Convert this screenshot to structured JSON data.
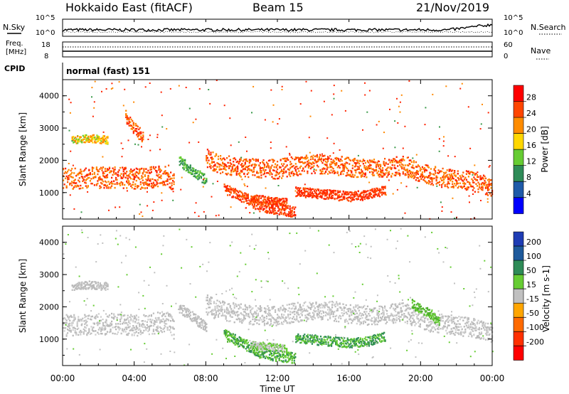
{
  "header": {
    "title": "Hokkaido East (fitACF)",
    "beam": "Beam 15",
    "date": "21/Nov/2019"
  },
  "top_panels": {
    "nsky_label": "N.Sky",
    "nsearch_label": "N.Search",
    "noise_ticks_left": [
      "10^5",
      "10^0"
    ],
    "noise_ticks_right": [
      "10^5",
      "10^0"
    ],
    "freq_label_1": "Freq.",
    "freq_label_2": "[MHz]",
    "freq_ticks": [
      "18",
      "8"
    ],
    "nave_label": "Nave",
    "nave_ticks": [
      "60",
      "0"
    ],
    "cpid_label": "CPID",
    "cpid_text": "normal (fast) 151"
  },
  "chart_data": [
    {
      "type": "heatmap",
      "name": "power",
      "ylabel": "Slant Range [km]",
      "colorbar_label": "Power [dB]",
      "colorbar_ticks": [
        "28",
        "24",
        "20",
        "16",
        "12",
        "8",
        "4"
      ],
      "colorbar_colors": [
        "#ff0000",
        "#ff4500",
        "#ff8c00",
        "#ffd700",
        "#66cc33",
        "#2e8b57",
        "#1e5aa8",
        "#0000ff"
      ],
      "yticks": [
        "4000",
        "3000",
        "2000",
        "1000"
      ],
      "ylim": [
        180,
        4500
      ],
      "xlim": [
        "00:00",
        "24:00"
      ],
      "bands": [
        {
          "center": [
            [
              0,
              1450
            ],
            [
              1.5,
              1480
            ],
            [
              3,
              1500
            ],
            [
              4,
              1450
            ],
            [
              5,
              1500
            ],
            [
              5.8,
              1600
            ],
            [
              6.2,
              1300
            ]
          ],
          "width": 330,
          "color": [
            "#ff2200",
            "#ff5a00",
            "#ff8800"
          ]
        },
        {
          "center": [
            [
              6.5,
              2000
            ],
            [
              7,
              1800
            ],
            [
              8,
              1400
            ]
          ],
          "width": 160,
          "color": [
            "#3a9a4a",
            "#2e8b57",
            "#66cc33"
          ]
        },
        {
          "center": [
            [
              8,
              2100
            ],
            [
              8.5,
              1950
            ],
            [
              9,
              1900
            ],
            [
              10,
              1800
            ],
            [
              11,
              1750
            ],
            [
              12,
              1750
            ],
            [
              13,
              1850
            ],
            [
              14,
              1900
            ],
            [
              15,
              1900
            ],
            [
              16,
              1800
            ],
            [
              17,
              1750
            ],
            [
              18,
              1800
            ],
            [
              19,
              1850
            ],
            [
              20,
              1650
            ],
            [
              21,
              1500
            ],
            [
              22,
              1450
            ],
            [
              23,
              1350
            ],
            [
              24,
              1200
            ]
          ],
          "width": 300,
          "color": [
            "#ff2200",
            "#ff5a00",
            "#ff8800"
          ]
        },
        {
          "center": [
            [
              9,
              1150
            ],
            [
              10,
              900
            ],
            [
              11,
              600
            ],
            [
              12,
              500
            ],
            [
              13,
              420
            ]
          ],
          "width": 170,
          "color": [
            "#ff2200",
            "#ff5a00"
          ]
        },
        {
          "center": [
            [
              13,
              1050
            ],
            [
              14,
              1000
            ],
            [
              15,
              950
            ],
            [
              16,
              900
            ],
            [
              17,
              950
            ],
            [
              18,
              1100
            ]
          ],
          "width": 150,
          "color": [
            "#ff2200",
            "#ff4500"
          ]
        },
        {
          "center": [
            [
              10.5,
              850
            ],
            [
              11.5,
              780
            ],
            [
              12.5,
              720
            ]
          ],
          "width": 120,
          "color": [
            "#ff2200",
            "#ff5a00"
          ]
        },
        {
          "center": [
            [
              3.5,
              3400
            ],
            [
              4,
              3000
            ],
            [
              4.5,
              2700
            ]
          ],
          "width": 200,
          "color": [
            "#ff8800",
            "#ff5a00",
            "#ff2200"
          ]
        },
        {
          "center": [
            [
              0.5,
              2650
            ],
            [
              1.5,
              2700
            ],
            [
              2.5,
              2650
            ]
          ],
          "width": 120,
          "color": [
            "#ff8800",
            "#ffd700",
            "#66cc33"
          ]
        }
      ]
    },
    {
      "type": "heatmap",
      "name": "velocity",
      "ylabel": "Slant Range [km]",
      "colorbar_label": "Velocity [m s-1]",
      "colorbar_ticks": [
        "200",
        "100",
        "50",
        "15",
        "-15",
        "-50",
        "-100",
        "-200"
      ],
      "colorbar_colors": [
        "#1e3cb4",
        "#1e5a9c",
        "#2e8b57",
        "#66cc33",
        "#c0c0c0",
        "#ffa500",
        "#ff6a00",
        "#ff3000",
        "#ff0000"
      ],
      "yticks": [
        "4000",
        "3000",
        "2000",
        "1000"
      ],
      "ylim": [
        180,
        4500
      ],
      "xlim": [
        "00:00",
        "24:00"
      ],
      "bands": [
        {
          "center": [
            [
              0,
              1450
            ],
            [
              1.5,
              1480
            ],
            [
              3,
              1500
            ],
            [
              4,
              1450
            ],
            [
              5,
              1500
            ],
            [
              5.8,
              1600
            ],
            [
              6.2,
              1300
            ]
          ],
          "width": 330,
          "color": [
            "#c0c0c0",
            "#b8b8b8",
            "#cfcfcf"
          ]
        },
        {
          "center": [
            [
              6.5,
              2000
            ],
            [
              7,
              1800
            ],
            [
              8,
              1400
            ]
          ],
          "width": 160,
          "color": [
            "#c0c0c0",
            "#b8b8b8"
          ]
        },
        {
          "center": [
            [
              8,
              2100
            ],
            [
              8.5,
              1950
            ],
            [
              9,
              1900
            ],
            [
              10,
              1800
            ],
            [
              11,
              1750
            ],
            [
              12,
              1750
            ],
            [
              13,
              1850
            ],
            [
              14,
              1900
            ],
            [
              15,
              1900
            ],
            [
              16,
              1800
            ],
            [
              17,
              1750
            ],
            [
              18,
              1800
            ],
            [
              19,
              1850
            ],
            [
              20,
              1650
            ],
            [
              21,
              1500
            ],
            [
              22,
              1450
            ],
            [
              23,
              1350
            ],
            [
              24,
              1200
            ]
          ],
          "width": 300,
          "color": [
            "#c0c0c0",
            "#b8b8b8",
            "#cfcfcf"
          ]
        },
        {
          "center": [
            [
              9,
              1150
            ],
            [
              10,
              900
            ],
            [
              11,
              600
            ],
            [
              12,
              500
            ],
            [
              13,
              420
            ]
          ],
          "width": 170,
          "color": [
            "#66cc33",
            "#4cae2c",
            "#2e8b57"
          ]
        },
        {
          "center": [
            [
              13,
              1050
            ],
            [
              14,
              1000
            ],
            [
              15,
              950
            ],
            [
              16,
              900
            ],
            [
              17,
              950
            ],
            [
              18,
              1100
            ]
          ],
          "width": 150,
          "color": [
            "#66cc33",
            "#2e8b57",
            "#3a9a4a"
          ]
        },
        {
          "center": [
            [
              10.5,
              850
            ],
            [
              11.5,
              780
            ],
            [
              12.5,
              720
            ]
          ],
          "width": 120,
          "color": [
            "#c0c0c0",
            "#66cc33"
          ]
        },
        {
          "center": [
            [
              19.5,
              2100
            ],
            [
              20.5,
              1800
            ],
            [
              21,
              1550
            ]
          ],
          "width": 150,
          "color": [
            "#66cc33",
            "#4cae2c"
          ]
        },
        {
          "center": [
            [
              0.5,
              2650
            ],
            [
              1.5,
              2700
            ],
            [
              2.5,
              2650
            ]
          ],
          "width": 120,
          "color": [
            "#c0c0c0",
            "#b8b8b8"
          ]
        }
      ]
    }
  ],
  "x_axis": {
    "ticks": [
      "00:00",
      "04:00",
      "08:00",
      "12:00",
      "16:00",
      "20:00",
      "00:00"
    ],
    "label": "Time UT"
  }
}
